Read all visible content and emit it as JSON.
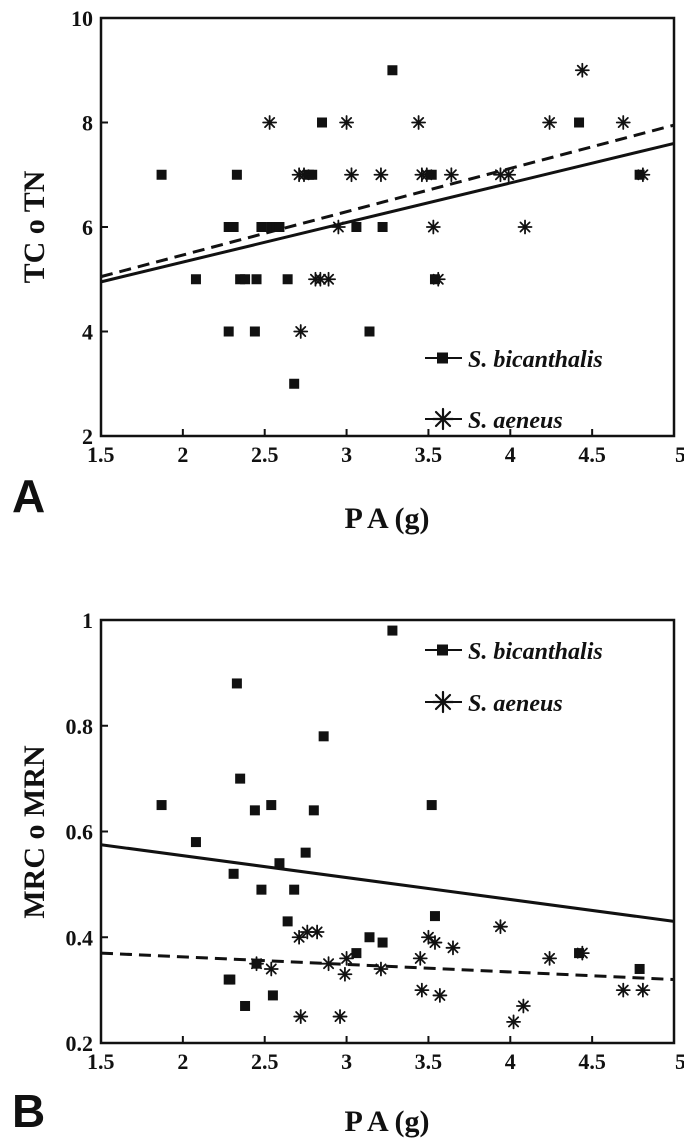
{
  "chart_data": [
    {
      "panel_label": "A",
      "type": "scatter",
      "xlabel": "P A (g)",
      "ylabel": "TC o TN",
      "xlim": [
        1.5,
        5
      ],
      "ylim": [
        2,
        10
      ],
      "xticks": [
        "1.5",
        "2",
        "2.5",
        "3",
        "3.5",
        "4",
        "4.5",
        "5"
      ],
      "yticks": [
        "2",
        "4",
        "6",
        "8",
        "10"
      ],
      "grid": false,
      "legend_position": "bottom-right",
      "series": [
        {
          "name": "S. bicanthalis",
          "marker": "square",
          "trend": "solid",
          "trend_line": [
            [
              1.5,
              4.95
            ],
            [
              5,
              7.6
            ]
          ],
          "points": [
            [
              1.87,
              7
            ],
            [
              2.08,
              5
            ],
            [
              2.28,
              4
            ],
            [
              2.28,
              6
            ],
            [
              2.31,
              6
            ],
            [
              2.33,
              7
            ],
            [
              2.35,
              5
            ],
            [
              2.38,
              5
            ],
            [
              2.44,
              4
            ],
            [
              2.45,
              5
            ],
            [
              2.48,
              6
            ],
            [
              2.54,
              6
            ],
            [
              2.57,
              6
            ],
            [
              2.59,
              6
            ],
            [
              2.64,
              5
            ],
            [
              2.68,
              3
            ],
            [
              2.77,
              7
            ],
            [
              2.79,
              7
            ],
            [
              2.85,
              8
            ],
            [
              3.06,
              6
            ],
            [
              3.14,
              4
            ],
            [
              3.22,
              6
            ],
            [
              3.28,
              9
            ],
            [
              3.52,
              7
            ],
            [
              3.54,
              5
            ],
            [
              4.42,
              8
            ],
            [
              4.79,
              7
            ]
          ]
        },
        {
          "name": "S. aeneus",
          "marker": "asterisk",
          "trend": "dashed",
          "trend_line": [
            [
              1.5,
              5.05
            ],
            [
              5,
              7.95
            ]
          ],
          "points": [
            [
              2.53,
              8
            ],
            [
              2.71,
              7
            ],
            [
              2.72,
              4
            ],
            [
              2.74,
              7
            ],
            [
              2.81,
              5
            ],
            [
              2.84,
              5
            ],
            [
              2.89,
              5
            ],
            [
              2.95,
              6
            ],
            [
              3.0,
              8
            ],
            [
              3.03,
              7
            ],
            [
              3.21,
              7
            ],
            [
              3.44,
              8
            ],
            [
              3.46,
              7
            ],
            [
              3.49,
              7
            ],
            [
              3.53,
              6
            ],
            [
              3.56,
              5
            ],
            [
              3.64,
              7
            ],
            [
              3.94,
              7
            ],
            [
              3.99,
              7
            ],
            [
              4.09,
              6
            ],
            [
              4.24,
              8
            ],
            [
              4.44,
              9
            ],
            [
              4.69,
              8
            ],
            [
              4.81,
              7
            ]
          ]
        }
      ]
    },
    {
      "panel_label": "B",
      "type": "scatter",
      "xlabel": "P A (g)",
      "ylabel": "MRC o MRN",
      "xlim": [
        1.5,
        5
      ],
      "ylim": [
        0.2,
        1
      ],
      "xticks": [
        "1.5",
        "2",
        "2.5",
        "3",
        "3.5",
        "4",
        "4.5",
        "5"
      ],
      "yticks": [
        "0.2",
        "0.4",
        "0.6",
        "0.8",
        "1"
      ],
      "grid": false,
      "legend_position": "top-right",
      "series": [
        {
          "name": "S. bicanthalis",
          "marker": "square",
          "trend": "solid",
          "trend_line": [
            [
              1.5,
              0.575
            ],
            [
              5,
              0.43
            ]
          ],
          "points": [
            [
              1.87,
              0.65
            ],
            [
              2.08,
              0.58
            ],
            [
              2.28,
              0.32
            ],
            [
              2.29,
              0.32
            ],
            [
              2.31,
              0.52
            ],
            [
              2.33,
              0.88
            ],
            [
              2.35,
              0.7
            ],
            [
              2.38,
              0.27
            ],
            [
              2.44,
              0.64
            ],
            [
              2.45,
              0.35
            ],
            [
              2.48,
              0.49
            ],
            [
              2.54,
              0.65
            ],
            [
              2.55,
              0.29
            ],
            [
              2.59,
              0.54
            ],
            [
              2.64,
              0.43
            ],
            [
              2.68,
              0.49
            ],
            [
              2.75,
              0.56
            ],
            [
              2.8,
              0.64
            ],
            [
              2.86,
              0.78
            ],
            [
              3.06,
              0.37
            ],
            [
              3.14,
              0.4
            ],
            [
              3.22,
              0.39
            ],
            [
              3.28,
              0.98
            ],
            [
              3.52,
              0.65
            ],
            [
              3.54,
              0.44
            ],
            [
              4.42,
              0.37
            ],
            [
              4.79,
              0.34
            ]
          ]
        },
        {
          "name": "S. aeneus",
          "marker": "asterisk",
          "trend": "dashed",
          "trend_line": [
            [
              1.5,
              0.37
            ],
            [
              5,
              0.32
            ]
          ],
          "points": [
            [
              2.45,
              0.35
            ],
            [
              2.54,
              0.34
            ],
            [
              2.71,
              0.4
            ],
            [
              2.72,
              0.25
            ],
            [
              2.76,
              0.41
            ],
            [
              2.82,
              0.41
            ],
            [
              2.89,
              0.35
            ],
            [
              2.96,
              0.25
            ],
            [
              2.99,
              0.33
            ],
            [
              3.0,
              0.36
            ],
            [
              3.21,
              0.34
            ],
            [
              3.45,
              0.36
            ],
            [
              3.46,
              0.3
            ],
            [
              3.5,
              0.4
            ],
            [
              3.54,
              0.39
            ],
            [
              3.57,
              0.29
            ],
            [
              3.65,
              0.38
            ],
            [
              3.94,
              0.42
            ],
            [
              4.02,
              0.24
            ],
            [
              4.08,
              0.27
            ],
            [
              4.24,
              0.36
            ],
            [
              4.44,
              0.37
            ],
            [
              4.69,
              0.3
            ],
            [
              4.81,
              0.3
            ]
          ]
        }
      ]
    }
  ]
}
